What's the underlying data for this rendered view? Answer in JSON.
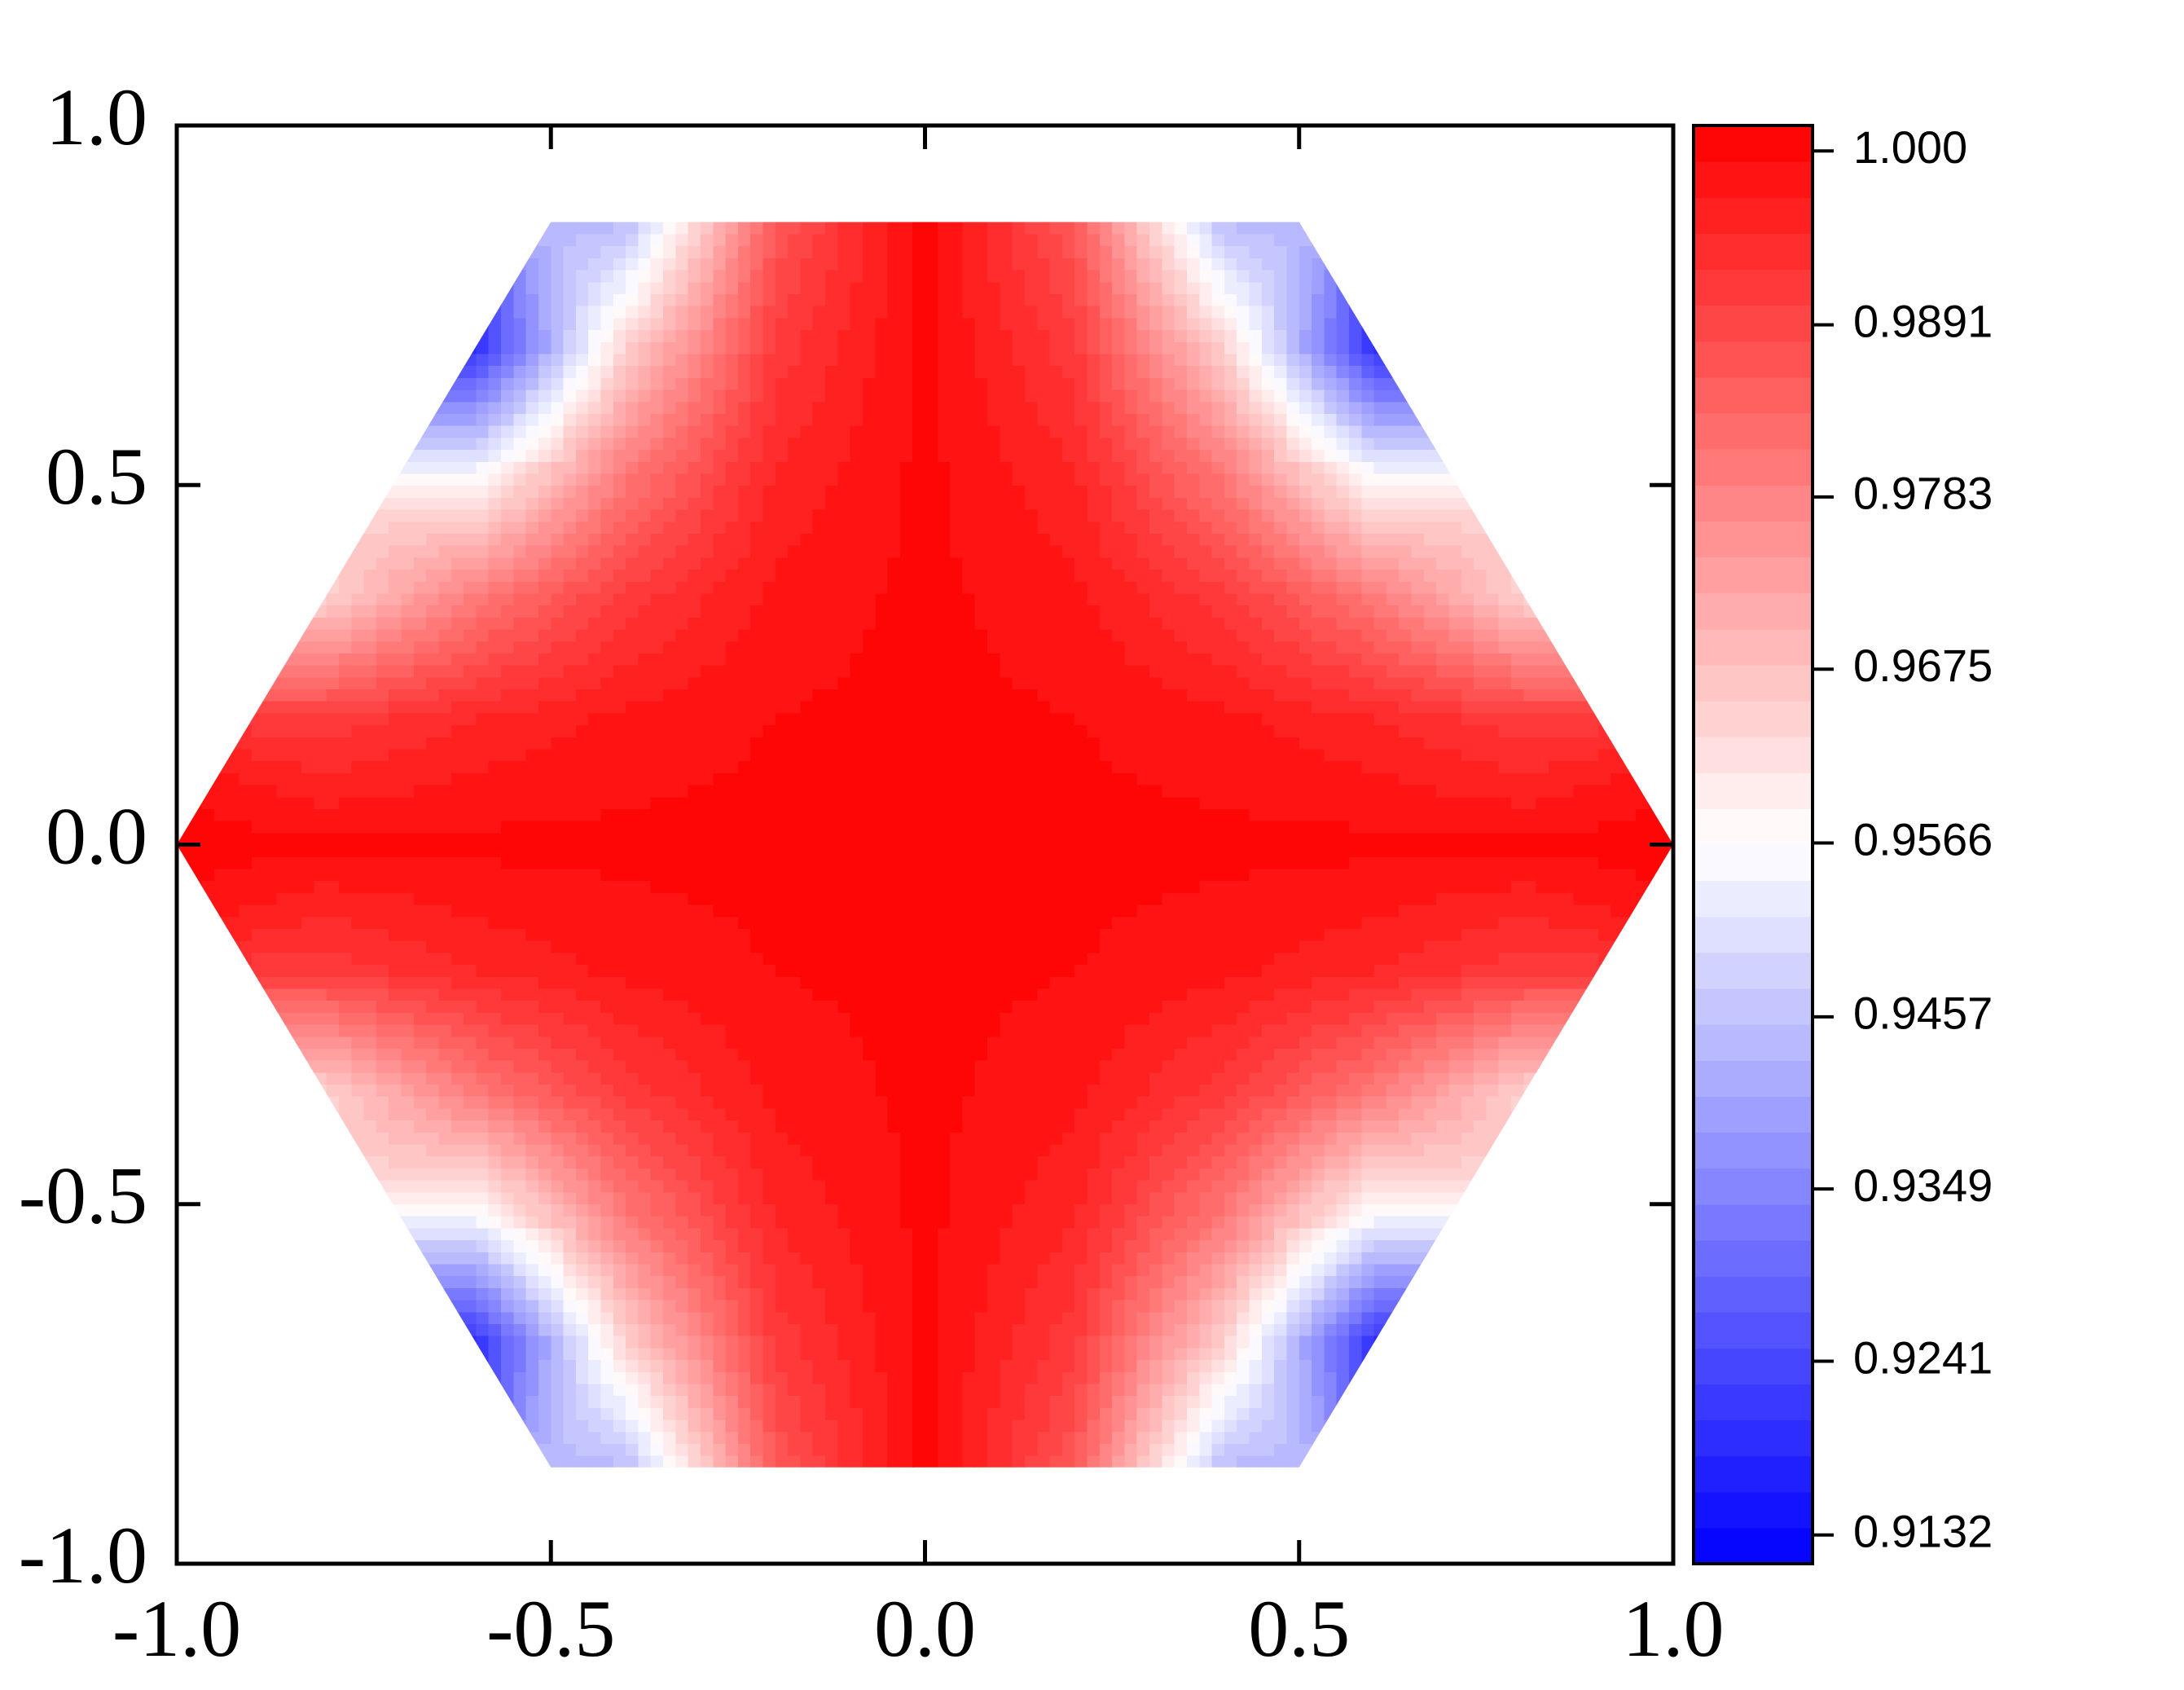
{
  "chart_data": {
    "type": "heatmap",
    "x": [
      -1,
      -0.8,
      -0.6,
      -0.4,
      -0.2,
      0,
      0.2,
      0.4,
      0.6,
      0.8,
      1
    ],
    "y": [
      -0.866,
      -0.6928,
      -0.5196,
      -0.3464,
      -0.1732,
      0,
      0.1732,
      0.3464,
      0.5196,
      0.6928,
      0.866
    ],
    "z": [
      [
        null,
        null,
        null,
        0.9444,
        0.9861,
        1,
        0.9861,
        0.9444,
        null,
        null,
        null
      ],
      [
        null,
        null,
        0.92,
        0.9644,
        0.9911,
        1,
        0.9911,
        0.9644,
        0.92,
        null,
        null
      ],
      [
        null,
        null,
        0.955,
        0.98,
        0.995,
        1,
        0.995,
        0.98,
        0.955,
        null,
        null
      ],
      [
        null,
        0.9644,
        0.98,
        0.9911,
        0.9978,
        1,
        0.9978,
        0.9911,
        0.98,
        0.9644,
        null
      ],
      [
        null,
        0.9911,
        0.995,
        0.9978,
        0.9994,
        1,
        0.9994,
        0.9978,
        0.995,
        0.9911,
        null
      ],
      [
        1,
        1,
        1,
        1,
        1,
        1,
        1,
        1,
        1,
        1,
        1
      ],
      [
        null,
        0.9911,
        0.995,
        0.9978,
        0.9994,
        1,
        0.9994,
        0.9978,
        0.995,
        0.9911,
        null
      ],
      [
        null,
        0.9644,
        0.98,
        0.9911,
        0.9978,
        1,
        0.9978,
        0.9911,
        0.98,
        0.9644,
        null
      ],
      [
        null,
        null,
        0.955,
        0.98,
        0.995,
        1,
        0.995,
        0.98,
        0.955,
        null,
        null
      ],
      [
        null,
        null,
        0.92,
        0.9644,
        0.9911,
        1,
        0.9911,
        0.9644,
        0.92,
        null,
        null
      ],
      [
        null,
        null,
        null,
        0.9444,
        0.9861,
        1,
        0.9861,
        0.9444,
        null,
        null,
        null
      ]
    ],
    "xlim": [
      -1,
      1
    ],
    "ylim": [
      -1,
      1
    ],
    "xticks": [
      {
        "value": -1,
        "label": "-1.0"
      },
      -0.5,
      {
        "value": 0,
        "label": "0.0"
      },
      0.5,
      {
        "value": 1,
        "label": "1.0"
      }
    ],
    "yticks": [
      {
        "value": -1,
        "label": "-1.0"
      },
      -0.5,
      {
        "value": 0,
        "label": "0.0"
      },
      0.5,
      {
        "value": 1,
        "label": "1.0"
      }
    ],
    "zlim": [
      0.9114,
      1.0016
    ],
    "zticks": [
      {
        "value": 1,
        "label": "1.000"
      },
      0.9891,
      0.9783,
      0.9675,
      0.9566,
      0.9457,
      0.9349,
      0.9241,
      0.9132
    ],
    "colormap": [
      "#0000ff",
      "#ffffff",
      "#ff0000"
    ]
  }
}
